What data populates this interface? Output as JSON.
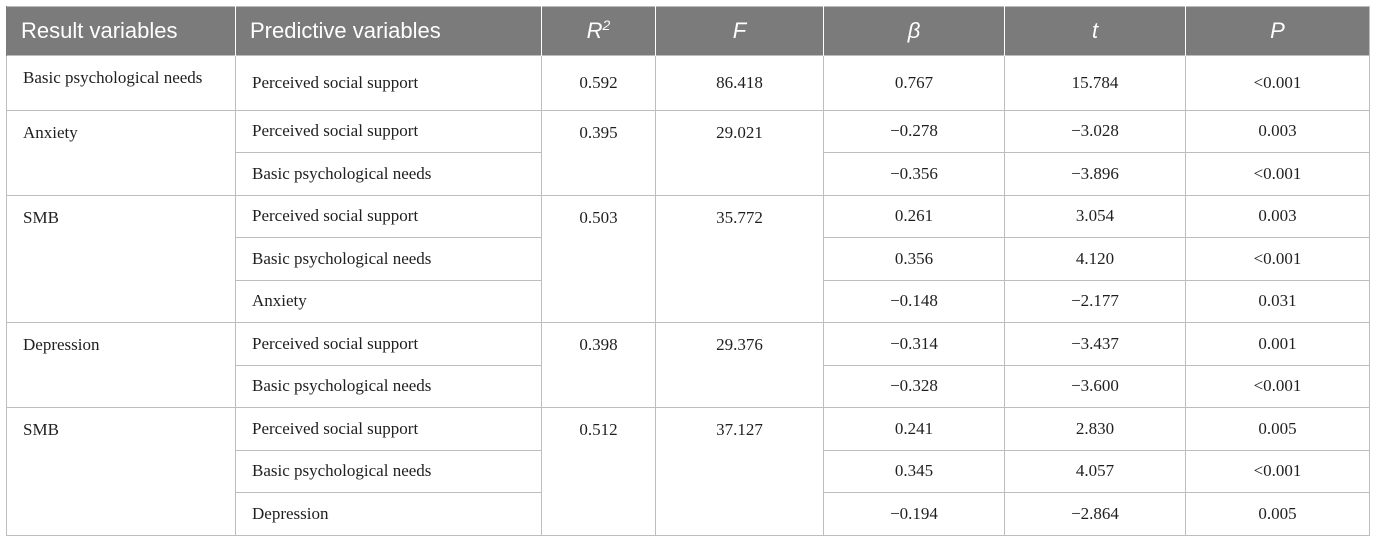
{
  "table": {
    "headers": [
      "Result variables",
      "Predictive variables",
      "R",
      "F",
      "β",
      "t",
      "P"
    ],
    "r_superscript": "2",
    "groups": [
      {
        "result": "Basic psychological needs",
        "r2": "0.592",
        "f": "86.418",
        "rows": [
          {
            "predictor": "Perceived social support",
            "beta": "0.767",
            "t": "15.784",
            "p": "<0.001"
          }
        ]
      },
      {
        "result": "Anxiety",
        "r2": "0.395",
        "f": "29.021",
        "rows": [
          {
            "predictor": "Perceived social support",
            "beta": "−0.278",
            "t": "−3.028",
            "p": "0.003"
          },
          {
            "predictor": "Basic psychological needs",
            "beta": "−0.356",
            "t": "−3.896",
            "p": "<0.001"
          }
        ]
      },
      {
        "result": "SMB",
        "r2": "0.503",
        "f": "35.772",
        "rows": [
          {
            "predictor": "Perceived social support",
            "beta": "0.261",
            "t": "3.054",
            "p": "0.003"
          },
          {
            "predictor": "Basic psychological needs",
            "beta": "0.356",
            "t": "4.120",
            "p": "<0.001"
          },
          {
            "predictor": "Anxiety",
            "beta": "−0.148",
            "t": "−2.177",
            "p": "0.031"
          }
        ]
      },
      {
        "result": "Depression",
        "r2": "0.398",
        "f": "29.376",
        "rows": [
          {
            "predictor": "Perceived social support",
            "beta": "−0.314",
            "t": "−3.437",
            "p": "0.001"
          },
          {
            "predictor": "Basic psychological needs",
            "beta": "−0.328",
            "t": "−3.600",
            "p": "<0.001"
          }
        ]
      },
      {
        "result": "SMB",
        "r2": "0.512",
        "f": "37.127",
        "rows": [
          {
            "predictor": "Perceived social support",
            "beta": "0.241",
            "t": "2.830",
            "p": "0.005"
          },
          {
            "predictor": "Basic psychological needs",
            "beta": "0.345",
            "t": "4.057",
            "p": "<0.001"
          },
          {
            "predictor": "Depression",
            "beta": "−0.194",
            "t": "−2.864",
            "p": "0.005"
          }
        ]
      }
    ]
  }
}
